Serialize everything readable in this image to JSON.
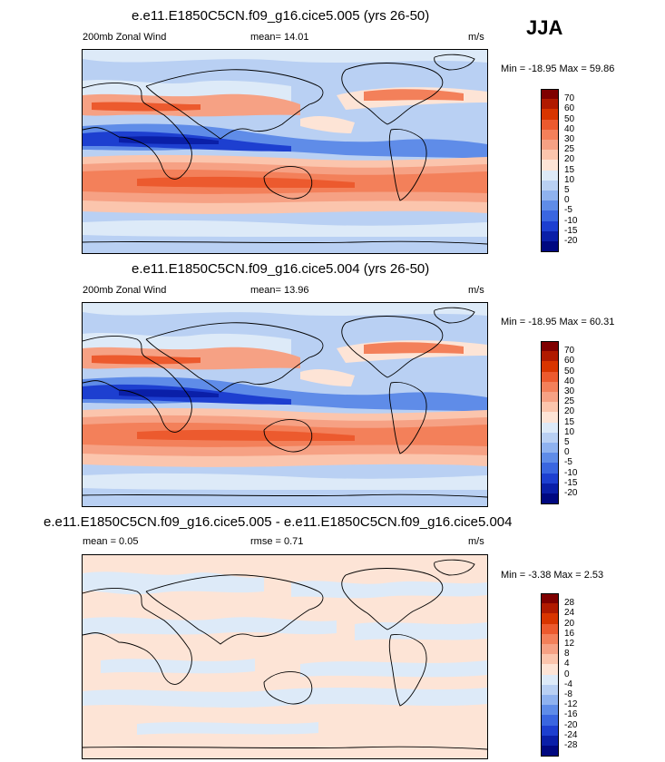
{
  "season": "JJA",
  "panels": [
    {
      "title": "e.e11.E1850C5CN.f09_g16.cice5.005 (yrs 26-50)",
      "left_label": "200mb Zonal Wind",
      "mean_text": "mean=  14.01",
      "units": "m/s",
      "minmax": "Min = -18.95 Max =  59.86"
    },
    {
      "title": "e.e11.E1850C5CN.f09_g16.cice5.004 (yrs 26-50)",
      "left_label": "200mb Zonal Wind",
      "mean_text": "mean=  13.96",
      "units": "m/s",
      "minmax": "Min = -18.95 Max =  60.31"
    },
    {
      "title": "e.e11.E1850C5CN.f09_g16.cice5.005 - e.e11.E1850C5CN.f09_g16.cice5.004",
      "left_label": "mean =   0.05",
      "mean_text": "rmse =   0.71",
      "units": "m/s",
      "minmax": "Min =  -3.38 Max =   2.53"
    }
  ],
  "chart_data": [
    {
      "type": "heatmap",
      "title": "e.e11.E1850C5CN.f09_g16.cice5.005 (yrs 26-50)",
      "variable": "200mb Zonal Wind",
      "units": "m/s",
      "mean": 14.01,
      "min": -18.95,
      "max": 59.86,
      "levels": [
        70,
        60,
        50,
        40,
        30,
        25,
        20,
        15,
        10,
        5,
        0,
        -5,
        -10,
        -15,
        -20
      ],
      "colors": [
        "#7f0000",
        "#b01a00",
        "#d83500",
        "#ec5a2e",
        "#f3805a",
        "#f6a184",
        "#fbc5ad",
        "#fde4d6",
        "#ddeaf8",
        "#b9d0f3",
        "#8fb2ef",
        "#5f8ce8",
        "#3a66e0",
        "#1d3fd0",
        "#0a1fa8",
        "#000880"
      ]
    },
    {
      "type": "heatmap",
      "title": "e.e11.E1850C5CN.f09_g16.cice5.004 (yrs 26-50)",
      "variable": "200mb Zonal Wind",
      "units": "m/s",
      "mean": 13.96,
      "min": -18.95,
      "max": 60.31,
      "levels": [
        70,
        60,
        50,
        40,
        30,
        25,
        20,
        15,
        10,
        5,
        0,
        -5,
        -10,
        -15,
        -20
      ],
      "colors": [
        "#7f0000",
        "#b01a00",
        "#d83500",
        "#ec5a2e",
        "#f3805a",
        "#f6a184",
        "#fbc5ad",
        "#fde4d6",
        "#ddeaf8",
        "#b9d0f3",
        "#8fb2ef",
        "#5f8ce8",
        "#3a66e0",
        "#1d3fd0",
        "#0a1fa8",
        "#000880"
      ]
    },
    {
      "type": "heatmap",
      "title": "e.e11.E1850C5CN.f09_g16.cice5.005 - e.e11.E1850C5CN.f09_g16.cice5.004",
      "units": "m/s",
      "mean": 0.05,
      "rmse": 0.71,
      "min": -3.38,
      "max": 2.53,
      "levels": [
        28,
        24,
        20,
        16,
        12,
        8,
        4,
        0,
        -4,
        -8,
        -12,
        -16,
        -20,
        -24,
        -28
      ],
      "colors": [
        "#7f0000",
        "#b01a00",
        "#d83500",
        "#ec5a2e",
        "#f3805a",
        "#f6a184",
        "#fbc5ad",
        "#fde4d6",
        "#ddeaf8",
        "#b9d0f3",
        "#8fb2ef",
        "#5f8ce8",
        "#3a66e0",
        "#1d3fd0",
        "#0a1fa8",
        "#000880"
      ]
    }
  ]
}
